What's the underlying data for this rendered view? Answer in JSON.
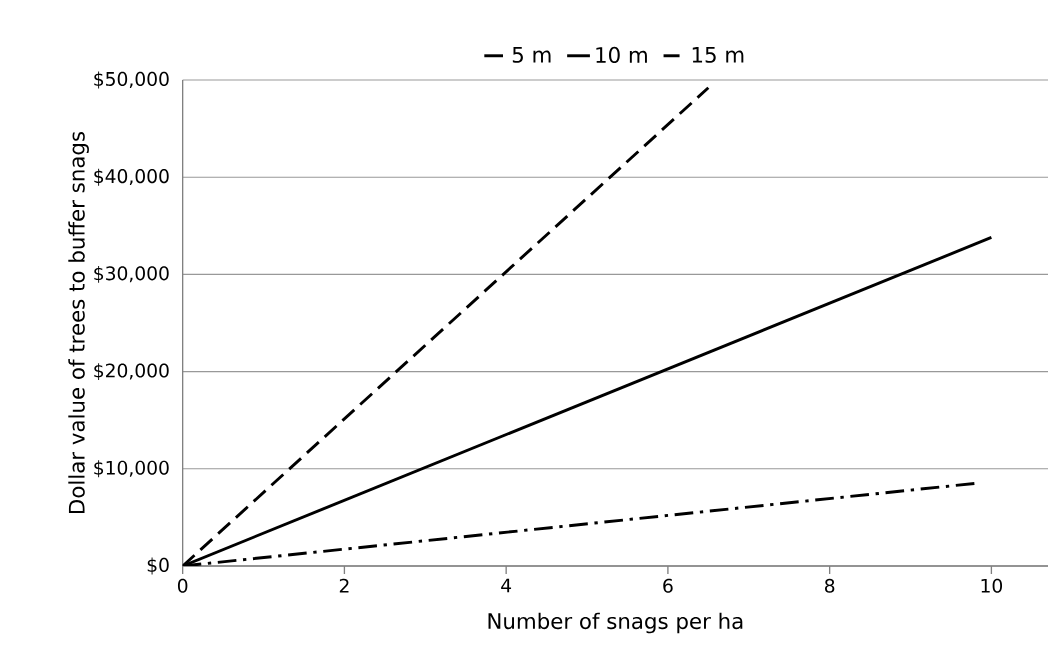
{
  "chart_data": {
    "type": "line",
    "xlabel": "Number of snags per ha",
    "ylabel": "Dollar value of trees to buffer snags",
    "xlim": [
      0,
      10.7
    ],
    "xticks": [
      0,
      2,
      4,
      6,
      8,
      10
    ],
    "ylim": [
      0,
      50000
    ],
    "yticks": [
      {
        "value": 0,
        "label": "$0"
      },
      {
        "value": 10000,
        "label": "$10,000"
      },
      {
        "value": 20000,
        "label": "$20,000"
      },
      {
        "value": 30000,
        "label": "$30,000"
      },
      {
        "value": 40000,
        "label": "$40,000"
      },
      {
        "value": 50000,
        "label": "$50,000"
      }
    ],
    "grid": "y",
    "legend": "top",
    "marker": "none",
    "series": [
      {
        "name": "5 m",
        "color": "#000000",
        "line_style": "dashdot",
        "x": [
          0,
          9.8
        ],
        "values": [
          0,
          8500
        ]
      },
      {
        "name": "10 m",
        "color": "#000000",
        "line_style": "solid",
        "x": [
          0,
          10
        ],
        "values": [
          0,
          33800
        ]
      },
      {
        "name": "15 m",
        "color": "#000000",
        "line_style": "dashed",
        "x": [
          0,
          6.5
        ],
        "values": [
          0,
          49200
        ]
      }
    ]
  }
}
